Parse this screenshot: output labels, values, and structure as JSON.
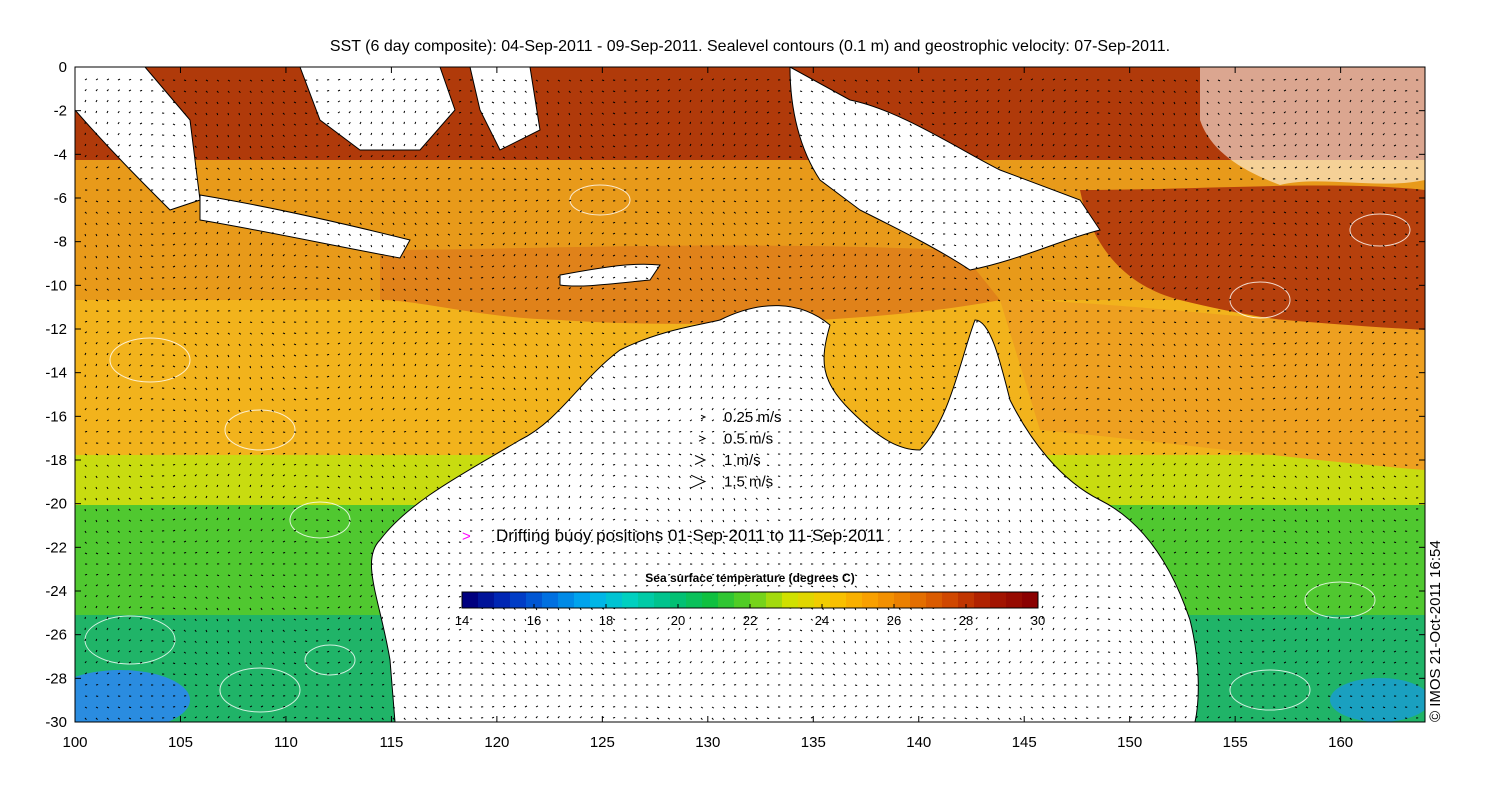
{
  "title": "SST (6 day composite): 04-Sep-2011 - 09-Sep-2011. Sealevel contours (0.1 m) and geostrophic velocity: 07-Sep-2011.",
  "map": {
    "lon_range": [
      100,
      164
    ],
    "lat_range": [
      -30,
      0
    ],
    "x_ticks": [
      "100",
      "105",
      "110",
      "115",
      "120",
      "125",
      "130",
      "135",
      "140",
      "145",
      "150",
      "155",
      "160"
    ],
    "y_ticks": [
      "0",
      "-2",
      "-4",
      "-6",
      "-8",
      "-10",
      "-12",
      "-14",
      "-16",
      "-18",
      "-20",
      "-22",
      "-24",
      "-26",
      "-28",
      "-30"
    ],
    "colors": {
      "land": "#ffffff",
      "coastline": "#000000",
      "contour": "#ffffff",
      "buoy": "#ff00ff"
    }
  },
  "velocity_legend": [
    {
      "speed": 0.25,
      "label": "0.25 m/s"
    },
    {
      "speed": 0.5,
      "label": "0.5 m/s"
    },
    {
      "speed": 1,
      "label": "1 m/s"
    },
    {
      "speed": 1.5,
      "label": "1.5 m/s"
    }
  ],
  "buoy_legend": {
    "symbol": ">",
    "label": "Drifting buoy positions 01-Sep-2011 to 11-Sep-2011"
  },
  "colorbar": {
    "title": "Sea surface temperature (degrees C)",
    "range": [
      14,
      30
    ],
    "ticks": [
      "14",
      "16",
      "18",
      "20",
      "22",
      "24",
      "26",
      "28",
      "30"
    ],
    "colormap": [
      "#00007f",
      "#0030c0",
      "#0070e0",
      "#00b0f0",
      "#00d0c0",
      "#00c080",
      "#10c040",
      "#60d020",
      "#d0e000",
      "#f8c800",
      "#f8a000",
      "#e87800",
      "#d04800",
      "#a81800",
      "#8a0000"
    ]
  },
  "credit": "© IMOS 21-Oct-2011 16:54"
}
